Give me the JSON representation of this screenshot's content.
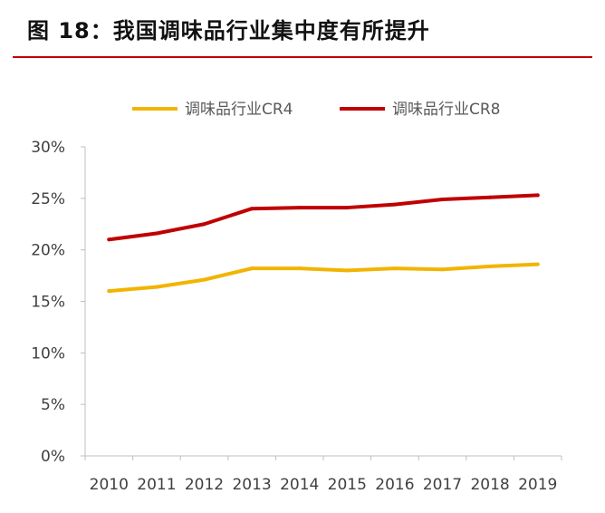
{
  "figure": {
    "title": "图 18：我国调味品行业集中度有所提升"
  },
  "colors": {
    "rule": "#c00000"
  },
  "chart_data": {
    "type": "line",
    "title": "",
    "xlabel": "",
    "ylabel": "",
    "categories": [
      "2010",
      "2011",
      "2012",
      "2013",
      "2014",
      "2015",
      "2016",
      "2017",
      "2018",
      "2019"
    ],
    "ylim": [
      0,
      30
    ],
    "yticks": [
      "0%",
      "5%",
      "10%",
      "15%",
      "20%",
      "25%",
      "30%"
    ],
    "grid": false,
    "legend_position": "top",
    "series": [
      {
        "name": "调味品行业CR4",
        "color": "#f2b400",
        "values": [
          16.0,
          16.4,
          17.1,
          18.2,
          18.2,
          18.0,
          18.2,
          18.1,
          18.4,
          18.6
        ]
      },
      {
        "name": "调味品行业CR8",
        "color": "#c00000",
        "values": [
          21.0,
          21.6,
          22.5,
          24.0,
          24.1,
          24.1,
          24.4,
          24.9,
          25.1,
          25.3
        ]
      }
    ]
  }
}
